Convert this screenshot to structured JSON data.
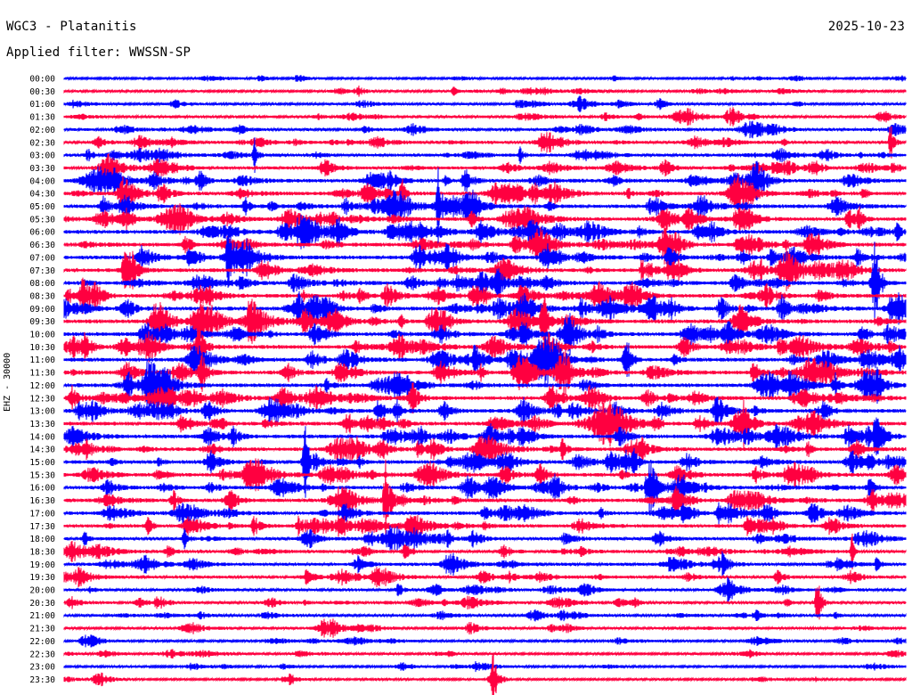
{
  "header": {
    "station": "WGC3 - Platanitis",
    "filter": "Applied filter: WWSSN-SP",
    "date": "2025-10-23",
    "channel": "EHZ - 30000"
  },
  "colors": {
    "trace_a": "#0000ff",
    "trace_b": "#ff0040",
    "text": "#000000",
    "background": "#ffffff"
  },
  "chart_data": {
    "type": "line",
    "title": "WGC3 - Platanitis",
    "subtitle": "Applied filter: WWSSN-SP",
    "ylabel": "EHZ - 30000",
    "row_labels": [
      "00:00",
      "00:30",
      "01:00",
      "01:30",
      "02:00",
      "02:30",
      "03:00",
      "03:30",
      "04:00",
      "04:30",
      "05:00",
      "05:30",
      "06:00",
      "06:30",
      "07:00",
      "07:30",
      "08:00",
      "08:30",
      "09:00",
      "09:30",
      "10:00",
      "10:30",
      "11:00",
      "11:30",
      "12:00",
      "12:30",
      "13:00",
      "13:30",
      "14:00",
      "14:30",
      "15:00",
      "15:30",
      "16:00",
      "16:30",
      "17:00",
      "17:30",
      "18:00",
      "18:30",
      "19:00",
      "19:30",
      "20:00",
      "20:30",
      "21:00",
      "21:30",
      "22:00",
      "22:30",
      "23:00",
      "23:30"
    ],
    "row_colors": [
      "trace_a",
      "trace_b"
    ],
    "activity": [
      0.25,
      0.3,
      0.35,
      0.45,
      0.5,
      0.55,
      0.6,
      0.65,
      0.75,
      0.8,
      0.85,
      0.85,
      0.9,
      0.9,
      0.9,
      0.9,
      0.9,
      0.9,
      0.9,
      0.9,
      0.9,
      0.9,
      0.9,
      0.9,
      0.9,
      0.9,
      0.9,
      0.9,
      0.85,
      0.85,
      0.85,
      0.85,
      0.8,
      0.8,
      0.75,
      0.75,
      0.7,
      0.65,
      0.6,
      0.55,
      0.5,
      0.5,
      0.45,
      0.4,
      0.35,
      0.3,
      0.3,
      0.25
    ],
    "grid": false
  }
}
